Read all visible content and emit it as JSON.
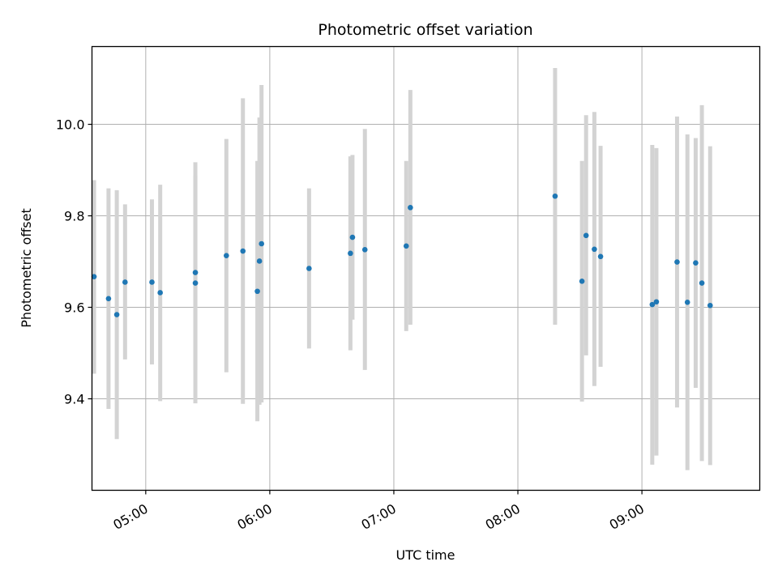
{
  "chart_data": {
    "type": "scatter",
    "title": "Photometric offset variation",
    "xlabel": "UTC time",
    "ylabel": "Photometric offset",
    "x_axis_type": "time",
    "xlim": [
      "04:34",
      "09:57"
    ],
    "ylim": [
      9.2,
      10.17
    ],
    "x_ticks": [
      "05:00",
      "06:00",
      "07:00",
      "08:00",
      "09:00"
    ],
    "y_ticks": [
      9.4,
      9.6,
      9.8,
      10.0
    ],
    "grid": true,
    "colors": {
      "point": "#1f77b4",
      "errorbar": "#d3d3d3",
      "grid": "#b0b0b0"
    },
    "points": [
      {
        "t": "04:35",
        "y": 9.667,
        "low": 9.455,
        "high": 9.878
      },
      {
        "t": "04:42",
        "y": 9.619,
        "low": 9.378,
        "high": 9.86
      },
      {
        "t": "04:46",
        "y": 9.584,
        "low": 9.312,
        "high": 9.856
      },
      {
        "t": "04:50",
        "y": 9.655,
        "low": 9.486,
        "high": 9.825
      },
      {
        "t": "05:03",
        "y": 9.655,
        "low": 9.475,
        "high": 9.836
      },
      {
        "t": "05:07",
        "y": 9.632,
        "low": 9.395,
        "high": 9.868
      },
      {
        "t": "05:24",
        "y": 9.676,
        "low": 9.463,
        "high": 9.889
      },
      {
        "t": "05:24",
        "y": 9.653,
        "low": 9.39,
        "high": 9.917
      },
      {
        "t": "05:39",
        "y": 9.713,
        "low": 9.458,
        "high": 9.968
      },
      {
        "t": "05:47",
        "y": 9.723,
        "low": 9.389,
        "high": 10.057
      },
      {
        "t": "05:54",
        "y": 9.635,
        "low": 9.351,
        "high": 9.92
      },
      {
        "t": "05:55",
        "y": 9.701,
        "low": 9.387,
        "high": 10.015
      },
      {
        "t": "05:56",
        "y": 9.739,
        "low": 9.392,
        "high": 10.086
      },
      {
        "t": "06:19",
        "y": 9.685,
        "low": 9.51,
        "high": 9.86
      },
      {
        "t": "06:39",
        "y": 9.718,
        "low": 9.506,
        "high": 9.93
      },
      {
        "t": "06:40",
        "y": 9.753,
        "low": 9.573,
        "high": 9.933
      },
      {
        "t": "06:46",
        "y": 9.726,
        "low": 9.463,
        "high": 9.99
      },
      {
        "t": "07:06",
        "y": 9.734,
        "low": 9.548,
        "high": 9.92
      },
      {
        "t": "07:08",
        "y": 9.818,
        "low": 9.562,
        "high": 10.075
      },
      {
        "t": "08:18",
        "y": 9.843,
        "low": 9.562,
        "high": 10.123
      },
      {
        "t": "08:31",
        "y": 9.657,
        "low": 9.394,
        "high": 9.92
      },
      {
        "t": "08:33",
        "y": 9.757,
        "low": 9.495,
        "high": 10.02
      },
      {
        "t": "08:37",
        "y": 9.727,
        "low": 9.428,
        "high": 10.027
      },
      {
        "t": "08:40",
        "y": 9.711,
        "low": 9.47,
        "high": 9.953
      },
      {
        "t": "09:05",
        "y": 9.606,
        "low": 9.256,
        "high": 9.955
      },
      {
        "t": "09:07",
        "y": 9.612,
        "low": 9.276,
        "high": 9.948
      },
      {
        "t": "09:17",
        "y": 9.699,
        "low": 9.381,
        "high": 10.017
      },
      {
        "t": "09:22",
        "y": 9.611,
        "low": 9.244,
        "high": 9.978
      },
      {
        "t": "09:26",
        "y": 9.697,
        "low": 9.424,
        "high": 9.97
      },
      {
        "t": "09:29",
        "y": 9.653,
        "low": 9.264,
        "high": 10.042
      },
      {
        "t": "09:33",
        "y": 9.604,
        "low": 9.255,
        "high": 9.952
      }
    ]
  }
}
